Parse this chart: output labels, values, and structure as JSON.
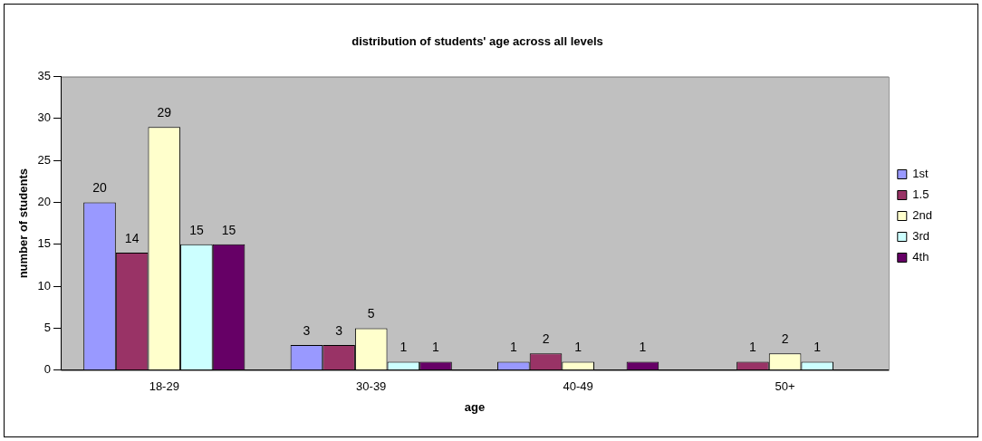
{
  "chart_data": {
    "type": "bar",
    "title": "distribution of students' age across all levels",
    "xlabel": "age",
    "ylabel": "number of students",
    "categories": [
      "18-29",
      "30-39",
      "40-49",
      "50+"
    ],
    "series": [
      {
        "name": "1st",
        "color": "#9999ff",
        "values": [
          20,
          3,
          1,
          null
        ]
      },
      {
        "name": "1.5",
        "color": "#993366",
        "values": [
          14,
          3,
          2,
          1
        ]
      },
      {
        "name": "2nd",
        "color": "#ffffcc",
        "values": [
          29,
          5,
          1,
          2
        ]
      },
      {
        "name": "3rd",
        "color": "#ccffff",
        "values": [
          15,
          1,
          null,
          1
        ]
      },
      {
        "name": "4th",
        "color": "#660066",
        "values": [
          15,
          1,
          1,
          null
        ]
      }
    ],
    "ylim": [
      0,
      35
    ],
    "yticks": [
      0,
      5,
      10,
      15,
      20,
      25,
      30,
      35
    ],
    "grid": false,
    "legend": "right",
    "data_labels": true
  }
}
